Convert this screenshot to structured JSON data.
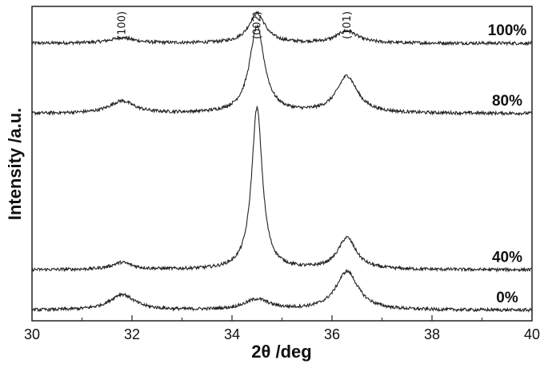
{
  "chart_data": {
    "type": "line",
    "xlabel": "2θ /deg",
    "ylabel": "Intensity /a.u.",
    "xlim": [
      30,
      40
    ],
    "xticks": [
      "30",
      "32",
      "34",
      "36",
      "38",
      "40"
    ],
    "peak_labels": [
      {
        "label": "(100)",
        "x": 31.8
      },
      {
        "label": "(002)",
        "x": 34.5
      },
      {
        "label": "(101)",
        "x": 36.3
      }
    ],
    "series": [
      {
        "name": "100%",
        "baseline": 7.9,
        "peaks": [
          {
            "x": 31.8,
            "height": 0.15,
            "width": 0.3
          },
          {
            "x": 34.5,
            "height": 0.85,
            "width": 0.2
          },
          {
            "x": 36.3,
            "height": 0.35,
            "width": 0.25
          }
        ]
      },
      {
        "name": "80%",
        "baseline": 5.9,
        "peaks": [
          {
            "x": 31.8,
            "height": 0.35,
            "width": 0.3
          },
          {
            "x": 34.5,
            "height": 2.45,
            "width": 0.18
          },
          {
            "x": 36.3,
            "height": 1.05,
            "width": 0.25
          }
        ]
      },
      {
        "name": "40%",
        "baseline": 1.45,
        "peaks": [
          {
            "x": 31.8,
            "height": 0.2,
            "width": 0.25
          },
          {
            "x": 34.5,
            "height": 4.6,
            "width": 0.13
          },
          {
            "x": 36.3,
            "height": 0.9,
            "width": 0.22
          }
        ]
      },
      {
        "name": "0%",
        "baseline": 0.3,
        "peaks": [
          {
            "x": 31.8,
            "height": 0.45,
            "width": 0.3
          },
          {
            "x": 34.5,
            "height": 0.3,
            "width": 0.3
          },
          {
            "x": 36.3,
            "height": 1.1,
            "width": 0.27
          }
        ]
      }
    ]
  }
}
